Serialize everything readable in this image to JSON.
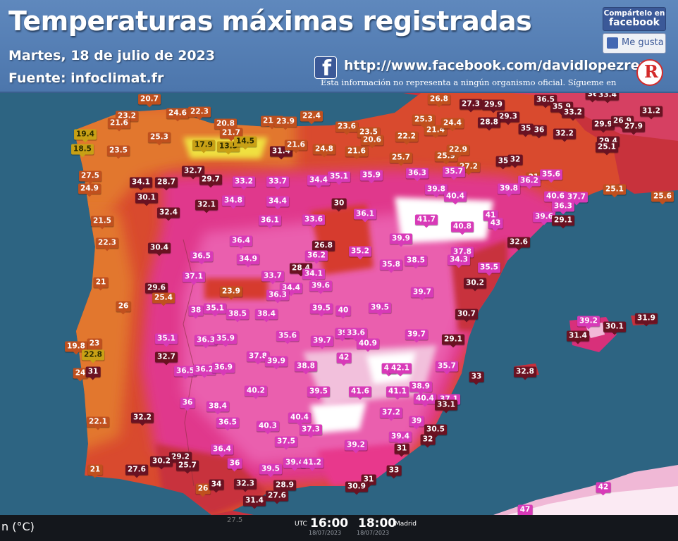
{
  "header": {
    "title": "Temperaturas máximas registradas",
    "date": "Martes, 18 de julio de 2023",
    "source": "Fuente: infoclimat.fr",
    "facebook_url": "http://www.facebook.com/davidlopezrey",
    "disclaimer": "Esta información no representa a ningún organismo oficial. Sígueme en",
    "share_line1": "Compártelo en",
    "share_line2": "facebook",
    "like_label": "Me gusta",
    "fb_icon": "facebook-f-icon",
    "logo_icon": "red-r-logo-icon"
  },
  "colors": {
    "sea": "#2a5f7c",
    "very_hot": "#e8308a",
    "hot": "#d63a4e",
    "warm": "#e06a2a",
    "mild": "#e0a050",
    "header": "#5a82b8"
  },
  "stations": [
    {
      "t": "20.7",
      "c": "o"
    },
    {
      "t": "24.6",
      "c": "o"
    },
    {
      "t": "22.3",
      "c": "o"
    },
    {
      "t": "23.2",
      "c": "o"
    },
    {
      "t": "21.6",
      "c": "o"
    },
    {
      "t": "19.4",
      "c": "y"
    },
    {
      "t": "25.3",
      "c": "o"
    },
    {
      "t": "18.5",
      "c": "y"
    },
    {
      "t": "23.5",
      "c": "o"
    },
    {
      "t": "20.8",
      "c": "o"
    },
    {
      "t": "21.7",
      "c": "o"
    },
    {
      "t": "17.9",
      "c": "y"
    },
    {
      "t": "13.5",
      "c": "y"
    },
    {
      "t": "14.5",
      "c": "y"
    },
    {
      "t": "21.6",
      "c": "o"
    },
    {
      "t": "23.9",
      "c": "o"
    },
    {
      "t": "22.4",
      "c": "o"
    },
    {
      "t": "31.4",
      "c": "d"
    },
    {
      "t": "21.6",
      "c": "o"
    },
    {
      "t": "24.8",
      "c": "o"
    },
    {
      "t": "23.6",
      "c": "o"
    },
    {
      "t": "23.5",
      "c": "o"
    },
    {
      "t": "21.6",
      "c": "o"
    },
    {
      "t": "20.6",
      "c": "o"
    },
    {
      "t": "22.2",
      "c": "o"
    },
    {
      "t": "25.3",
      "c": "o"
    },
    {
      "t": "21.4",
      "c": "o"
    },
    {
      "t": "24.4",
      "c": "o"
    },
    {
      "t": "26.8",
      "c": "o"
    },
    {
      "t": "27.3",
      "c": "d"
    },
    {
      "t": "29.9",
      "c": "d"
    },
    {
      "t": "29.3",
      "c": "d"
    },
    {
      "t": "28.8",
      "c": "d"
    },
    {
      "t": "36.5",
      "c": "d"
    },
    {
      "t": "35.9",
      "c": "d"
    },
    {
      "t": "33.2",
      "c": "d"
    },
    {
      "t": "36",
      "c": "d"
    },
    {
      "t": "33.4",
      "c": "d"
    },
    {
      "t": "31.2",
      "c": "d"
    },
    {
      "t": "35",
      "c": "d"
    },
    {
      "t": "36",
      "c": "d"
    },
    {
      "t": "32.2",
      "c": "d"
    },
    {
      "t": "29.9",
      "c": "d"
    },
    {
      "t": "26.9",
      "c": "d"
    },
    {
      "t": "27.9",
      "c": "d"
    },
    {
      "t": "29.4",
      "c": "d"
    },
    {
      "t": "25.1",
      "c": "d"
    },
    {
      "t": "25.7",
      "c": "o"
    },
    {
      "t": "25.9",
      "c": "o"
    },
    {
      "t": "22.9",
      "c": "o"
    },
    {
      "t": "27.2",
      "c": "o"
    },
    {
      "t": "35.7",
      "c": "m"
    },
    {
      "t": "35",
      "c": "d"
    },
    {
      "t": "32",
      "c": "d"
    },
    {
      "t": "21",
      "c": "o"
    },
    {
      "t": "36.2",
      "c": "m"
    },
    {
      "t": "35.6",
      "c": "m"
    },
    {
      "t": "27.5",
      "c": "o"
    },
    {
      "t": "34.1",
      "c": "d"
    },
    {
      "t": "28.7",
      "c": "d"
    },
    {
      "t": "32.7",
      "c": "d"
    },
    {
      "t": "29.7",
      "c": "d"
    },
    {
      "t": "33.2",
      "c": "m"
    },
    {
      "t": "33.7",
      "c": "m"
    },
    {
      "t": "34.4",
      "c": "m"
    },
    {
      "t": "35.1",
      "c": "m"
    },
    {
      "t": "35.9",
      "c": "m"
    },
    {
      "t": "36.3",
      "c": "m"
    },
    {
      "t": "39.8",
      "c": "m"
    },
    {
      "t": "40.4",
      "c": "m"
    },
    {
      "t": "39.8",
      "c": "m"
    },
    {
      "t": "40.6",
      "c": "m"
    },
    {
      "t": "37.7",
      "c": "m"
    },
    {
      "t": "25.1",
      "c": "o"
    },
    {
      "t": "25.6",
      "c": "o"
    },
    {
      "t": "24.9",
      "c": "o"
    },
    {
      "t": "30.1",
      "c": "d"
    },
    {
      "t": "34.8",
      "c": "m"
    },
    {
      "t": "34.4",
      "c": "m"
    },
    {
      "t": "30",
      "c": "d"
    },
    {
      "t": "36.3",
      "c": "m"
    },
    {
      "t": "32.4",
      "c": "d"
    },
    {
      "t": "32.1",
      "c": "d"
    },
    {
      "t": "36.1",
      "c": "m"
    },
    {
      "t": "33.6",
      "c": "m"
    },
    {
      "t": "36.1",
      "c": "m"
    },
    {
      "t": "41.7",
      "c": "m"
    },
    {
      "t": "40.8",
      "c": "m"
    },
    {
      "t": "41",
      "c": "m"
    },
    {
      "t": "43",
      "c": "m"
    },
    {
      "t": "39.6",
      "c": "m"
    },
    {
      "t": "29.1",
      "c": "d"
    },
    {
      "t": "21.5",
      "c": "o"
    },
    {
      "t": "22.3",
      "c": "o"
    },
    {
      "t": "36.4",
      "c": "m"
    },
    {
      "t": "26.8",
      "c": "d"
    },
    {
      "t": "35.2",
      "c": "m"
    },
    {
      "t": "39.9",
      "c": "m"
    },
    {
      "t": "37.8",
      "c": "m"
    },
    {
      "t": "32.6",
      "c": "d"
    },
    {
      "t": "30.4",
      "c": "d"
    },
    {
      "t": "36.5",
      "c": "m"
    },
    {
      "t": "34.9",
      "c": "m"
    },
    {
      "t": "36.2",
      "c": "m"
    },
    {
      "t": "28.4",
      "c": "d"
    },
    {
      "t": "34.1",
      "c": "m"
    },
    {
      "t": "35.8",
      "c": "m"
    },
    {
      "t": "38.5",
      "c": "m"
    },
    {
      "t": "34.3",
      "c": "m"
    },
    {
      "t": "35.5",
      "c": "m"
    },
    {
      "t": "37.1",
      "c": "m"
    },
    {
      "t": "33.7",
      "c": "m"
    },
    {
      "t": "34.4",
      "c": "m"
    },
    {
      "t": "39.6",
      "c": "m"
    },
    {
      "t": "30.2",
      "c": "d"
    },
    {
      "t": "21",
      "c": "o"
    },
    {
      "t": "29.6",
      "c": "d"
    },
    {
      "t": "25.4",
      "c": "o"
    },
    {
      "t": "23.9",
      "c": "o"
    },
    {
      "t": "36.3",
      "c": "m"
    },
    {
      "t": "39.7",
      "c": "m"
    },
    {
      "t": "26",
      "c": "o"
    },
    {
      "t": "38",
      "c": "m"
    },
    {
      "t": "35.1",
      "c": "m"
    },
    {
      "t": "38.5",
      "c": "m"
    },
    {
      "t": "38.4",
      "c": "m"
    },
    {
      "t": "39.5",
      "c": "m"
    },
    {
      "t": "40",
      "c": "m"
    },
    {
      "t": "39.5",
      "c": "m"
    },
    {
      "t": "30.7",
      "c": "d"
    },
    {
      "t": "39.2",
      "c": "m"
    },
    {
      "t": "30.1",
      "c": "d"
    },
    {
      "t": "31.9",
      "c": "d"
    },
    {
      "t": "39",
      "c": "m"
    },
    {
      "t": "33.6",
      "c": "m"
    },
    {
      "t": "39.7",
      "c": "m"
    },
    {
      "t": "31.4",
      "c": "d"
    },
    {
      "t": "23",
      "c": "o"
    },
    {
      "t": "35.1",
      "c": "m"
    },
    {
      "t": "36.3",
      "c": "m"
    },
    {
      "t": "35.9",
      "c": "m"
    },
    {
      "t": "35.6",
      "c": "m"
    },
    {
      "t": "39.7",
      "c": "m"
    },
    {
      "t": "40.9",
      "c": "m"
    },
    {
      "t": "29.1",
      "c": "d"
    },
    {
      "t": "19.8",
      "c": "o"
    },
    {
      "t": "22.8",
      "c": "y"
    },
    {
      "t": "32.7",
      "c": "d"
    },
    {
      "t": "37.8",
      "c": "m"
    },
    {
      "t": "39.9",
      "c": "m"
    },
    {
      "t": "38.8",
      "c": "m"
    },
    {
      "t": "42",
      "c": "m"
    },
    {
      "t": "40",
      "c": "m"
    },
    {
      "t": "42.1",
      "c": "m"
    },
    {
      "t": "35.7",
      "c": "m"
    },
    {
      "t": "24",
      "c": "o"
    },
    {
      "t": "31",
      "c": "d"
    },
    {
      "t": "36.5",
      "c": "m"
    },
    {
      "t": "36.2",
      "c": "m"
    },
    {
      "t": "36.9",
      "c": "m"
    },
    {
      "t": "32.8",
      "c": "d"
    },
    {
      "t": "33",
      "c": "d"
    },
    {
      "t": "40.2",
      "c": "m"
    },
    {
      "t": "39.5",
      "c": "m"
    },
    {
      "t": "41.6",
      "c": "m"
    },
    {
      "t": "41.1",
      "c": "m"
    },
    {
      "t": "38.9",
      "c": "m"
    },
    {
      "t": "40.4",
      "c": "m"
    },
    {
      "t": "37.1",
      "c": "m"
    },
    {
      "t": "33.1",
      "c": "d"
    },
    {
      "t": "36",
      "c": "m"
    },
    {
      "t": "38.4",
      "c": "m"
    },
    {
      "t": "22.1",
      "c": "o"
    },
    {
      "t": "32.2",
      "c": "d"
    },
    {
      "t": "36.5",
      "c": "m"
    },
    {
      "t": "40.3",
      "c": "m"
    },
    {
      "t": "40.4",
      "c": "m"
    },
    {
      "t": "37.2",
      "c": "m"
    },
    {
      "t": "37.3",
      "c": "m"
    },
    {
      "t": "39",
      "c": "m"
    },
    {
      "t": "30.5",
      "c": "d"
    },
    {
      "t": "37.5",
      "c": "m"
    },
    {
      "t": "39.2",
      "c": "m"
    },
    {
      "t": "39.4",
      "c": "m"
    },
    {
      "t": "32",
      "c": "d"
    },
    {
      "t": "31",
      "c": "d"
    },
    {
      "t": "36.4",
      "c": "m"
    },
    {
      "t": "29.2",
      "c": "d"
    },
    {
      "t": "30.2",
      "c": "d"
    },
    {
      "t": "25.7",
      "c": "d"
    },
    {
      "t": "36",
      "c": "m"
    },
    {
      "t": "39.4",
      "c": "m"
    },
    {
      "t": "41.2",
      "c": "m"
    },
    {
      "t": "21",
      "c": "o"
    },
    {
      "t": "27.6",
      "c": "d"
    },
    {
      "t": "39.5",
      "c": "m"
    },
    {
      "t": "33",
      "c": "d"
    },
    {
      "t": "31",
      "c": "d"
    },
    {
      "t": "30.9",
      "c": "d"
    },
    {
      "t": "26",
      "c": "o"
    },
    {
      "t": "34",
      "c": "d"
    },
    {
      "t": "32.3",
      "c": "d"
    },
    {
      "t": "28.9",
      "c": "d"
    },
    {
      "t": "27.6",
      "c": "d"
    },
    {
      "t": "31.4",
      "c": "d"
    },
    {
      "t": "42",
      "c": "m"
    },
    {
      "t": "47",
      "c": "m"
    }
  ],
  "bottom_bar": {
    "unit": "n (°C)",
    "scale_tick": "27.5",
    "utc_label": "UTC",
    "time_utc": "16:00",
    "date_utc": "18/07/2023",
    "time_madrid": "18:00",
    "madrid_label": "Madrid",
    "date_madrid": "18/07/2023"
  }
}
